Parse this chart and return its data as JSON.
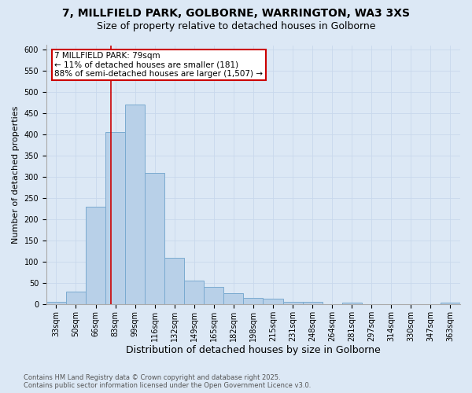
{
  "title_line1": "7, MILLFIELD PARK, GOLBORNE, WARRINGTON, WA3 3XS",
  "title_line2": "Size of property relative to detached houses in Golborne",
  "xlabel": "Distribution of detached houses by size in Golborne",
  "ylabel": "Number of detached properties",
  "footnote": "Contains HM Land Registry data © Crown copyright and database right 2025.\nContains public sector information licensed under the Open Government Licence v3.0.",
  "bar_labels": [
    "33sqm",
    "50sqm",
    "66sqm",
    "83sqm",
    "99sqm",
    "116sqm",
    "132sqm",
    "149sqm",
    "165sqm",
    "182sqm",
    "198sqm",
    "215sqm",
    "231sqm",
    "248sqm",
    "264sqm",
    "281sqm",
    "297sqm",
    "314sqm",
    "330sqm",
    "347sqm",
    "363sqm"
  ],
  "bar_heights": [
    5,
    30,
    230,
    405,
    470,
    310,
    110,
    55,
    40,
    25,
    15,
    12,
    5,
    5,
    0,
    3,
    0,
    0,
    0,
    0,
    3
  ],
  "bar_color": "#b8d0e8",
  "bar_edge_color": "#7aaad0",
  "bar_edge_width": 0.7,
  "vline_color": "#cc0000",
  "vline_x_index": 2.76,
  "annotation_text": "7 MILLFIELD PARK: 79sqm\n← 11% of detached houses are smaller (181)\n88% of semi-detached houses are larger (1,507) →",
  "annotation_box_color": "#cc0000",
  "annotation_bg": "#ffffff",
  "ylim": [
    0,
    610
  ],
  "yticks": [
    0,
    50,
    100,
    150,
    200,
    250,
    300,
    350,
    400,
    450,
    500,
    550,
    600
  ],
  "grid_color": "#c8d8ec",
  "bg_color": "#dce8f5",
  "plot_bg_color": "#dce8f5",
  "title_fontsize": 10,
  "subtitle_fontsize": 9,
  "ylabel_fontsize": 8,
  "xlabel_fontsize": 9,
  "tick_fontsize": 7,
  "annot_fontsize": 7.5,
  "footnote_fontsize": 6
}
